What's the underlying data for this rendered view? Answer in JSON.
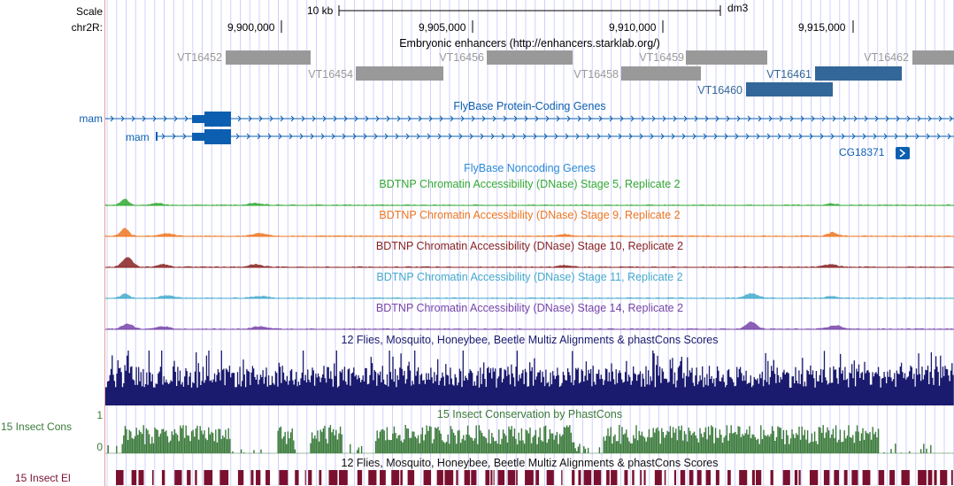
{
  "ruler": {
    "scale_label": "Scale",
    "chrom_label": "chr2R:",
    "scale_bar_text": "10 kb",
    "assembly": "dm3",
    "positions": [
      "9,900,000",
      "9,905,000",
      "9,910,000",
      "9,915,000"
    ]
  },
  "colors": {
    "grid": "#d0d0ff",
    "enhancer_gray": "#999999",
    "enhancer_blue": "#336699",
    "gene_blue": "#0c5fb0",
    "stage5": "#33aa33",
    "stage9": "#ee7722",
    "stage10": "#882222",
    "stage11": "#44aacc",
    "stage14": "#7744aa",
    "multiz": "#1a1a6e",
    "phastcons": "#3a7a3a",
    "elements": "#7a1030"
  },
  "tracks": {
    "enhancers": {
      "title": "Embryonic enhancers (http://enhancers.starklab.org/)",
      "items": [
        {
          "name": "VT16452",
          "color": "gray"
        },
        {
          "name": "VT16454",
          "color": "gray"
        },
        {
          "name": "VT16456",
          "color": "gray"
        },
        {
          "name": "VT16458",
          "color": "gray"
        },
        {
          "name": "VT16459",
          "color": "gray"
        },
        {
          "name": "VT16460",
          "color": "blue"
        },
        {
          "name": "VT16461",
          "color": "blue"
        },
        {
          "name": "VT16462",
          "color": "gray"
        }
      ]
    },
    "genes": {
      "title": "FlyBase Protein-Coding Genes",
      "left_labels": [
        "mam",
        "mam"
      ],
      "cg_label": "CG18371"
    },
    "noncoding": {
      "title": "FlyBase Noncoding Genes"
    },
    "dnase": [
      {
        "key": "stage5",
        "title": "BDTNP Chromatin Accessibility (DNase) Stage 5, Replicate 2"
      },
      {
        "key": "stage9",
        "title": "BDTNP Chromatin Accessibility (DNase) Stage 9, Replicate 2"
      },
      {
        "key": "stage10",
        "title": "BDTNP Chromatin Accessibility (DNase) Stage 10, Replicate 2"
      },
      {
        "key": "stage11",
        "title": "BDTNP Chromatin Accessibility (DNase) Stage 11, Replicate 2"
      },
      {
        "key": "stage14",
        "title": "BDTNP Chromatin Accessibility (DNase) Stage 14, Replicate 2"
      }
    ],
    "multiz": {
      "title": "12 Flies, Mosquito, Honeybee, Beetle Multiz Alignments & phastCons Scores"
    },
    "phastcons": {
      "title": "15 Insect Conservation by PhastCons",
      "side_label": "15 Insect Cons",
      "axis_max": "1",
      "axis_min": "0"
    },
    "elements": {
      "title": "12 Flies, Mosquito, Honeybee, Beetle Multiz Alignments & phastCons Scores",
      "side_label": "15 Insect El"
    }
  }
}
